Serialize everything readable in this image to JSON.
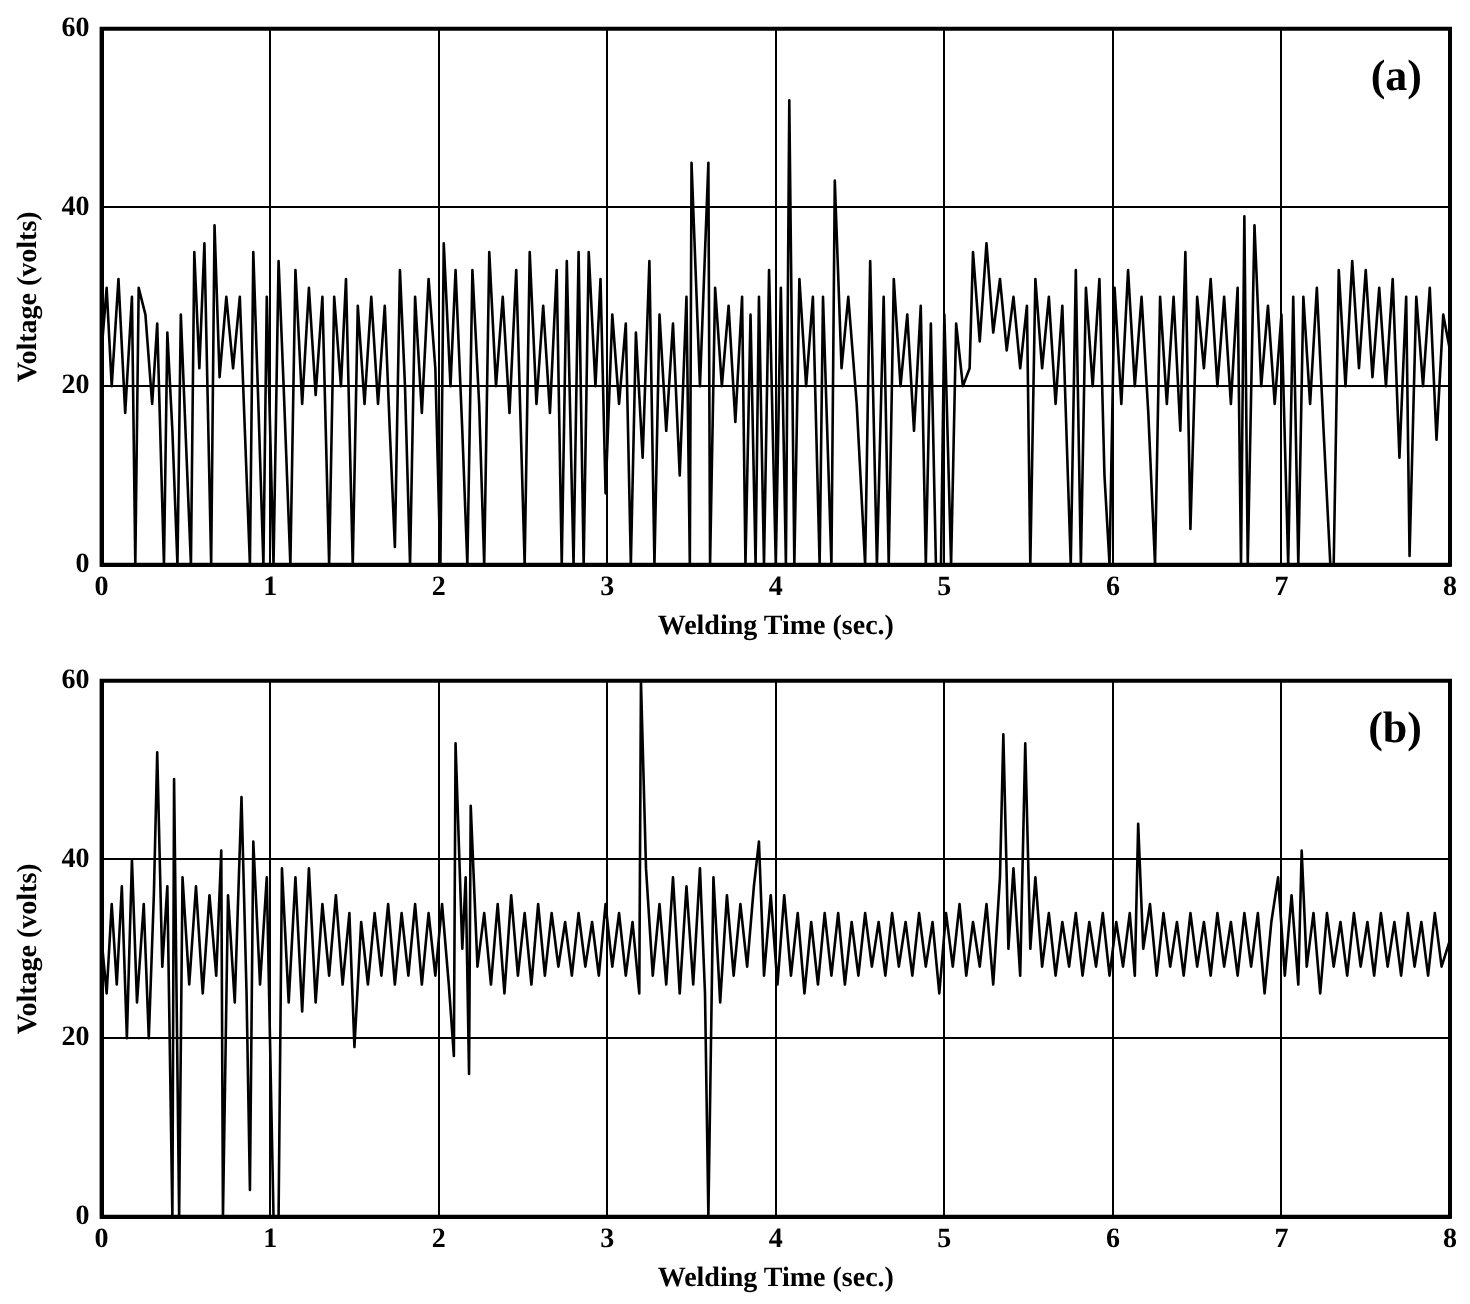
{
  "chart_data": [
    {
      "type": "line",
      "xlabel": "Welding Time (sec.)",
      "ylabel": "Voltage (volts)",
      "annotations": [
        "(a)"
      ],
      "color": "#000000",
      "marker": "none",
      "grid": true,
      "legend": false,
      "xlim": [
        0,
        8
      ],
      "xticks": [
        0,
        1,
        2,
        3,
        4,
        5,
        6,
        7,
        8
      ],
      "ylim": [
        0,
        60
      ],
      "yticks": [
        0,
        20,
        40,
        60
      ],
      "x": [
        0,
        0.03,
        0.06,
        0.1,
        0.14,
        0.18,
        0.2,
        0.22,
        0.26,
        0.3,
        0.33,
        0.37,
        0.39,
        0.42,
        0.45,
        0.47,
        0.5,
        0.53,
        0.55,
        0.58,
        0.61,
        0.65,
        0.67,
        0.7,
        0.74,
        0.78,
        0.82,
        0.85,
        0.88,
        0.9,
        0.93,
        0.96,
        0.98,
        1.02,
        1.05,
        1.08,
        1.12,
        1.15,
        1.19,
        1.23,
        1.27,
        1.31,
        1.35,
        1.38,
        1.42,
        1.45,
        1.49,
        1.52,
        1.56,
        1.6,
        1.64,
        1.68,
        1.71,
        1.74,
        1.77,
        1.8,
        1.83,
        1.86,
        1.9,
        1.94,
        1.98,
        2.01,
        2.03,
        2.07,
        2.1,
        2.14,
        2.17,
        2.2,
        2.24,
        2.27,
        2.3,
        2.34,
        2.38,
        2.42,
        2.46,
        2.51,
        2.54,
        2.58,
        2.62,
        2.66,
        2.7,
        2.73,
        2.76,
        2.8,
        2.83,
        2.86,
        2.89,
        2.93,
        2.96,
        2.99,
        3.03,
        3.07,
        3.11,
        3.14,
        3.17,
        3.21,
        3.25,
        3.28,
        3.31,
        3.35,
        3.39,
        3.43,
        3.47,
        3.49,
        3.5,
        3.55,
        3.6,
        3.61,
        3.64,
        3.68,
        3.72,
        3.76,
        3.8,
        3.82,
        3.85,
        3.88,
        3.9,
        3.93,
        3.96,
        4.0,
        4.03,
        4.06,
        4.08,
        4.11,
        4.14,
        4.18,
        4.22,
        4.26,
        4.28,
        4.33,
        4.35,
        4.39,
        4.43,
        4.48,
        4.53,
        4.56,
        4.6,
        4.64,
        4.67,
        4.7,
        4.74,
        4.78,
        4.82,
        4.86,
        4.89,
        4.92,
        4.95,
        4.98,
        5.0,
        5.04,
        5.07,
        5.11,
        5.15,
        5.17,
        5.21,
        5.25,
        5.29,
        5.33,
        5.37,
        5.41,
        5.45,
        5.49,
        5.51,
        5.54,
        5.58,
        5.62,
        5.66,
        5.7,
        5.75,
        5.78,
        5.81,
        5.84,
        5.88,
        5.92,
        5.95,
        5.98,
        6.01,
        6.05,
        6.09,
        6.13,
        6.17,
        6.21,
        6.25,
        6.28,
        6.32,
        6.36,
        6.4,
        6.43,
        6.46,
        6.5,
        6.54,
        6.58,
        6.62,
        6.66,
        6.7,
        6.74,
        6.76,
        6.78,
        6.8,
        6.84,
        6.88,
        6.92,
        6.96,
        7.0,
        7.04,
        7.07,
        7.1,
        7.13,
        7.17,
        7.21,
        7.25,
        7.29,
        7.31,
        7.34,
        7.38,
        7.42,
        7.46,
        7.5,
        7.54,
        7.58,
        7.62,
        7.66,
        7.7,
        7.74,
        7.76,
        7.8,
        7.84,
        7.88,
        7.92,
        7.96,
        8.0
      ],
      "values": [
        24,
        31,
        20,
        32,
        17,
        30,
        0,
        31,
        28,
        18,
        27,
        0,
        26,
        15,
        0,
        28,
        14,
        0,
        35,
        22,
        36,
        0,
        38,
        21,
        30,
        22,
        30,
        15,
        0,
        35,
        18,
        0,
        30,
        0,
        34,
        20,
        0,
        33,
        18,
        31,
        19,
        30,
        0,
        30,
        20,
        32,
        0,
        29,
        18,
        30,
        18,
        29,
        15,
        2,
        33,
        20,
        0,
        30,
        17,
        32,
        22,
        0,
        36,
        20,
        33,
        15,
        0,
        33,
        18,
        0,
        35,
        20,
        30,
        17,
        33,
        0,
        35,
        18,
        29,
        17,
        33,
        0,
        34,
        0,
        35,
        0,
        35,
        20,
        32,
        8,
        28,
        18,
        27,
        0,
        26,
        12,
        34,
        0,
        28,
        15,
        27,
        10,
        30,
        0,
        45,
        20,
        45,
        0,
        31,
        20,
        29,
        16,
        30,
        0,
        28,
        0,
        30,
        0,
        33,
        0,
        31,
        0,
        52,
        0,
        32,
        20,
        30,
        0,
        30,
        0,
        43,
        22,
        30,
        18,
        0,
        34,
        0,
        30,
        0,
        32,
        20,
        28,
        15,
        29,
        0,
        27,
        0,
        0,
        28,
        0,
        27,
        20,
        22,
        35,
        25,
        36,
        26,
        32,
        24,
        30,
        22,
        29,
        0,
        32,
        22,
        30,
        18,
        29,
        0,
        33,
        0,
        31,
        20,
        32,
        10,
        0,
        31,
        18,
        33,
        20,
        30,
        17,
        0,
        30,
        18,
        30,
        15,
        35,
        4,
        30,
        22,
        32,
        20,
        30,
        18,
        31,
        0,
        39,
        0,
        38,
        20,
        29,
        18,
        28,
        0,
        30,
        0,
        30,
        18,
        31,
        15,
        0,
        0,
        33,
        20,
        34,
        22,
        33,
        21,
        31,
        20,
        32,
        12,
        30,
        1,
        30,
        20,
        31,
        14,
        28,
        24
      ]
    },
    {
      "type": "line",
      "xlabel": "Welding Time (sec.)",
      "ylabel": "Voltage (volts)",
      "annotations": [
        "(b)"
      ],
      "color": "#000000",
      "marker": "none",
      "grid": true,
      "legend": false,
      "xlim": [
        0,
        8
      ],
      "xticks": [
        0,
        1,
        2,
        3,
        4,
        5,
        6,
        7,
        8
      ],
      "ylim": [
        0,
        60
      ],
      "yticks": [
        0,
        20,
        40,
        60
      ],
      "x": [
        0,
        0.03,
        0.06,
        0.09,
        0.12,
        0.15,
        0.18,
        0.21,
        0.25,
        0.28,
        0.31,
        0.33,
        0.36,
        0.39,
        0.42,
        0.43,
        0.46,
        0.48,
        0.52,
        0.56,
        0.6,
        0.64,
        0.68,
        0.71,
        0.72,
        0.75,
        0.79,
        0.83,
        0.86,
        0.88,
        0.9,
        0.94,
        0.98,
        1.02,
        1.05,
        1.07,
        1.11,
        1.15,
        1.19,
        1.23,
        1.27,
        1.31,
        1.35,
        1.39,
        1.43,
        1.47,
        1.5,
        1.54,
        1.58,
        1.62,
        1.66,
        1.7,
        1.74,
        1.78,
        1.82,
        1.86,
        1.9,
        1.94,
        1.98,
        2.02,
        2.06,
        2.09,
        2.1,
        2.14,
        2.16,
        2.18,
        2.19,
        2.23,
        2.27,
        2.31,
        2.35,
        2.39,
        2.43,
        2.47,
        2.51,
        2.55,
        2.59,
        2.63,
        2.67,
        2.71,
        2.75,
        2.79,
        2.83,
        2.87,
        2.91,
        2.95,
        2.99,
        3.03,
        3.07,
        3.11,
        3.15,
        3.19,
        3.2,
        3.23,
        3.27,
        3.31,
        3.35,
        3.39,
        3.43,
        3.47,
        3.51,
        3.55,
        3.58,
        3.6,
        3.63,
        3.67,
        3.71,
        3.75,
        3.79,
        3.83,
        3.87,
        3.9,
        3.93,
        3.97,
        4.01,
        4.05,
        4.09,
        4.13,
        4.17,
        4.21,
        4.25,
        4.29,
        4.33,
        4.37,
        4.41,
        4.45,
        4.49,
        4.53,
        4.57,
        4.61,
        4.65,
        4.69,
        4.73,
        4.77,
        4.81,
        4.85,
        4.89,
        4.93,
        4.97,
        5.01,
        5.05,
        5.09,
        5.13,
        5.17,
        5.21,
        5.25,
        5.29,
        5.33,
        5.35,
        5.38,
        5.41,
        5.45,
        5.48,
        5.51,
        5.54,
        5.58,
        5.62,
        5.66,
        5.7,
        5.74,
        5.78,
        5.82,
        5.86,
        5.9,
        5.94,
        5.98,
        6.02,
        6.06,
        6.1,
        6.13,
        6.15,
        6.18,
        6.22,
        6.26,
        6.3,
        6.34,
        6.38,
        6.42,
        6.46,
        6.5,
        6.54,
        6.58,
        6.62,
        6.66,
        6.7,
        6.74,
        6.78,
        6.82,
        6.86,
        6.9,
        6.94,
        6.98,
        7.02,
        7.06,
        7.1,
        7.12,
        7.15,
        7.19,
        7.23,
        7.27,
        7.31,
        7.35,
        7.39,
        7.43,
        7.47,
        7.51,
        7.55,
        7.59,
        7.63,
        7.67,
        7.71,
        7.75,
        7.79,
        7.83,
        7.87,
        7.91,
        7.95,
        8.0
      ],
      "values": [
        31,
        25,
        35,
        26,
        37,
        20,
        40,
        24,
        35,
        20,
        36,
        52,
        28,
        37,
        0,
        49,
        0,
        38,
        26,
        37,
        25,
        36,
        27,
        41,
        0,
        36,
        24,
        47,
        25,
        3,
        42,
        26,
        38,
        0,
        0,
        39,
        24,
        38,
        23,
        39,
        24,
        35,
        27,
        36,
        26,
        34,
        19,
        33,
        26,
        34,
        27,
        35,
        26,
        34,
        27,
        35,
        26,
        34,
        27,
        35,
        26,
        18,
        53,
        30,
        38,
        16,
        46,
        28,
        34,
        26,
        35,
        25,
        36,
        27,
        34,
        26,
        35,
        27,
        34,
        28,
        33,
        27,
        34,
        28,
        33,
        27,
        35,
        28,
        34,
        27,
        33,
        25,
        60,
        39,
        27,
        35,
        26,
        38,
        25,
        37,
        26,
        39,
        25,
        0,
        38,
        24,
        36,
        27,
        35,
        28,
        37,
        42,
        27,
        36,
        26,
        36,
        27,
        34,
        25,
        33,
        26,
        34,
        27,
        34,
        26,
        33,
        27,
        34,
        28,
        33,
        27,
        34,
        28,
        33,
        27,
        34,
        28,
        33,
        25,
        34,
        28,
        35,
        27,
        33,
        28,
        35,
        26,
        38,
        54,
        30,
        39,
        27,
        53,
        30,
        38,
        28,
        34,
        27,
        33,
        28,
        34,
        27,
        33,
        28,
        34,
        27,
        33,
        28,
        34,
        27,
        44,
        30,
        35,
        27,
        34,
        28,
        33,
        27,
        34,
        28,
        33,
        27,
        34,
        28,
        33,
        27,
        34,
        28,
        34,
        25,
        33,
        38,
        27,
        36,
        26,
        41,
        28,
        34,
        25,
        34,
        28,
        33,
        27,
        34,
        28,
        33,
        27,
        34,
        28,
        33,
        27,
        34,
        28,
        33,
        27,
        34,
        28,
        31
      ]
    }
  ]
}
